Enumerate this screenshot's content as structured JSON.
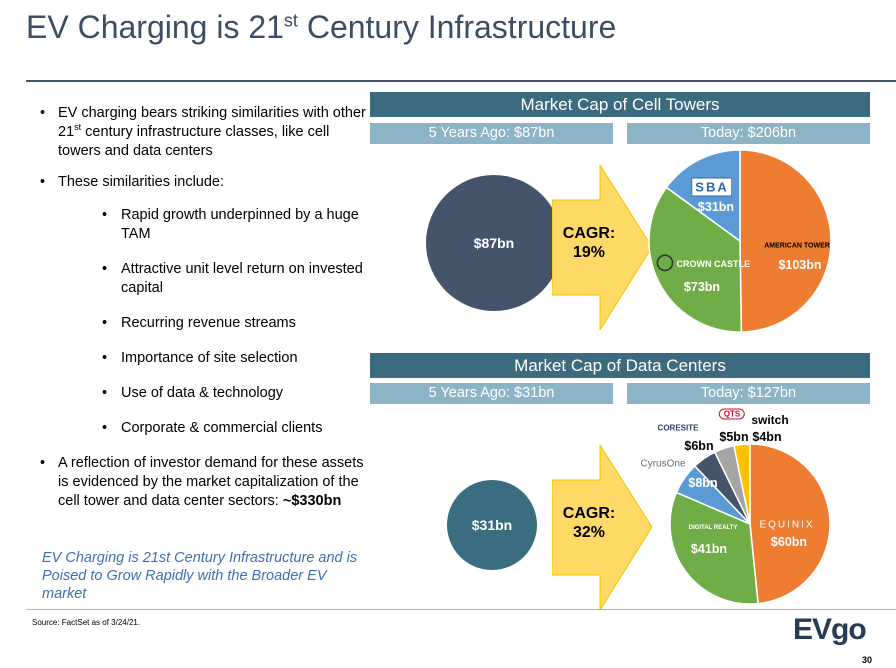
{
  "title": {
    "main": "EV Charging is 21",
    "sup": "st",
    "rest": " Century Infrastructure"
  },
  "bullets": {
    "b1_pre": "EV charging bears striking similarities with other 21",
    "b1_sup": "st",
    "b1_post": " century infrastructure classes, like cell towers and data centers",
    "b2": "These similarities include:",
    "sub": [
      "Rapid growth underpinned by a huge TAM",
      "Attractive unit level return on invested capital",
      "Recurring revenue streams",
      "Importance of site selection",
      "Use of data & technology",
      "Corporate & commercial clients"
    ],
    "b3_pre": "A reflection of investor demand for these assets is evidenced by the market capitalization of the cell tower and data center sectors: ",
    "b3_bold": "~$330bn"
  },
  "callout": "EV Charging is 21st Century Infrastructure and is Poised to Grow Rapidly with the Broader EV market",
  "towers": {
    "header": "Market Cap of Cell Towers",
    "past_label": "5 Years Ago: $87bn",
    "today_label": "Today: $206bn",
    "past_value": "$87bn",
    "cagr_label": "CAGR:",
    "cagr_value": "19%",
    "logos": {
      "sba": "SBA",
      "crown": "CROWN CASTLE",
      "american": "AMERICAN TOWER"
    }
  },
  "datacenters": {
    "header": "Market Cap of Data Centers",
    "past_label": "5 Years Ago: $31bn",
    "today_label": "Today: $127bn",
    "past_value": "$31bn",
    "cagr_label": "CAGR:",
    "cagr_value": "32%",
    "logos": {
      "coresite": "CORESITE",
      "cyrusone": "CyrusOne",
      "qts": "QTS",
      "switch": "switch",
      "digital": "DIGITAL REALTY",
      "equinix": "EQUINIX"
    }
  },
  "chart_data": [
    {
      "type": "pie",
      "title": "Today: $206bn",
      "labels": [
        "American Tower",
        "Crown Castle",
        "SBA"
      ],
      "value_labels": [
        "$103bn",
        "$73bn",
        "$31bn"
      ],
      "values": [
        103,
        73,
        31
      ],
      "colors": [
        "#ee7d31",
        "#70ad47",
        "#5b9bd5"
      ]
    },
    {
      "type": "pie",
      "title": "Today: $127bn",
      "labels": [
        "Equinix",
        "Digital Realty",
        "CyrusOne",
        "CoreSite",
        "QTS",
        "Switch"
      ],
      "value_labels": [
        "$60bn",
        "$41bn",
        "$8bn",
        "$6bn",
        "$5bn",
        "$4bn"
      ],
      "values": [
        60,
        41,
        8,
        6,
        5,
        4
      ],
      "colors": [
        "#ee7d31",
        "#70ad47",
        "#5b9bd5",
        "#44546a",
        "#a5a5a5",
        "#ffc000"
      ]
    }
  ],
  "footer": {
    "source": "Source:  FactSet as of 3/24/21.",
    "logo_ev": "EV",
    "logo_go": "go",
    "page": "30"
  }
}
